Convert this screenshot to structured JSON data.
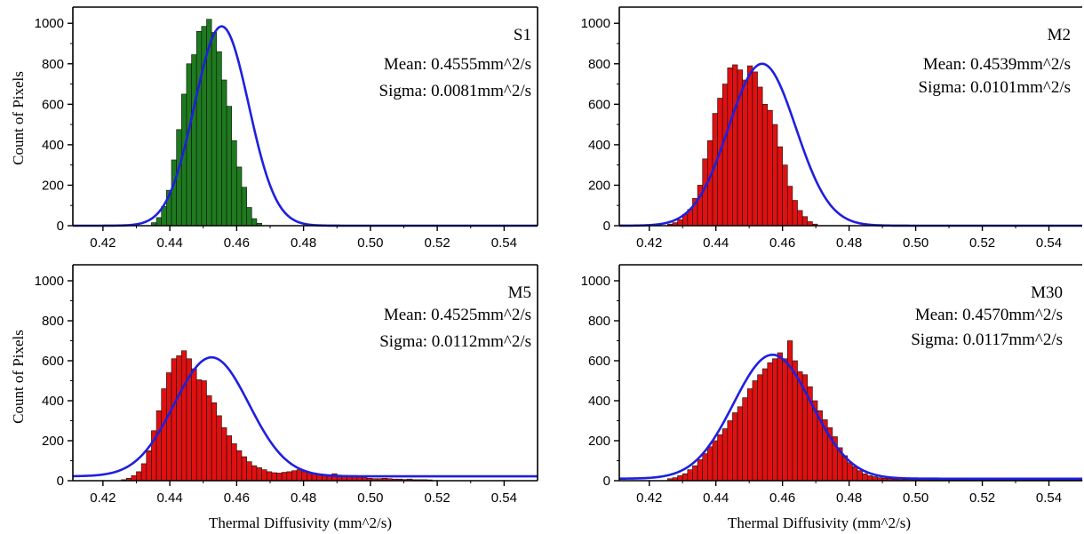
{
  "figure": {
    "x_axis_label": "Thermal Diffusivity (mm^2/s)",
    "y_axis_label": "Count of Pixels"
  },
  "chart_data": [
    {
      "type": "bar",
      "name": "S1",
      "mean_text": "Mean: 0.4555mm^2/s",
      "sigma_text": "Sigma: 0.0081mm^2/s",
      "bar_color": "#1e7a1e",
      "fit_color": "#1f1fe0",
      "xlim": [
        0.411,
        0.55
      ],
      "ylim": [
        0,
        1080
      ],
      "xticks": [
        0.42,
        0.44,
        0.46,
        0.48,
        0.5,
        0.52,
        0.54
      ],
      "yticks": [
        0,
        200,
        400,
        600,
        800,
        1000
      ],
      "xlabel": "",
      "ylabel": "Count of Pixels",
      "fit": {
        "mean": 0.4555,
        "sigma": 0.0081,
        "amplitude": 985,
        "offset": 0
      },
      "bins": {
        "start": 0.4345,
        "width": 0.0015,
        "counts": [
          15,
          40,
          95,
          175,
          325,
          475,
          650,
          800,
          845,
          960,
          985,
          1020,
          955,
          860,
          720,
          590,
          420,
          290,
          190,
          90,
          35,
          12
        ]
      }
    },
    {
      "type": "bar",
      "name": "M2",
      "mean_text": "Mean: 0.4539mm^2/s",
      "sigma_text": "Sigma: 0.0101mm^2/s",
      "bar_color": "#e01010",
      "fit_color": "#1f1fe0",
      "xlim": [
        0.411,
        0.55
      ],
      "ylim": [
        0,
        1080
      ],
      "xticks": [
        0.42,
        0.44,
        0.46,
        0.48,
        0.5,
        0.52,
        0.54
      ],
      "yticks": [
        0,
        200,
        400,
        600,
        800,
        1000
      ],
      "xlabel": "",
      "ylabel": "",
      "fit": {
        "mean": 0.4539,
        "sigma": 0.0101,
        "amplitude": 800,
        "offset": 0
      },
      "bins": {
        "start": 0.4255,
        "width": 0.0015,
        "counts": [
          8,
          15,
          30,
          55,
          80,
          135,
          200,
          330,
          420,
          555,
          630,
          700,
          780,
          795,
          770,
          720,
          790,
          760,
          685,
          600,
          570,
          500,
          390,
          300,
          195,
          125,
          75,
          45,
          20,
          8
        ]
      }
    },
    {
      "type": "bar",
      "name": "M5",
      "mean_text": "Mean: 0.4525mm^2/s",
      "sigma_text": "Sigma: 0.0112mm^2/s",
      "bar_color": "#e01010",
      "fit_color": "#1f1fe0",
      "xlim": [
        0.411,
        0.55
      ],
      "ylim": [
        0,
        1080
      ],
      "xticks": [
        0.42,
        0.44,
        0.46,
        0.48,
        0.5,
        0.52,
        0.54
      ],
      "yticks": [
        0,
        200,
        400,
        600,
        800,
        1000
      ],
      "xlabel": "Thermal Diffusivity (mm^2/s)",
      "ylabel": "Count of Pixels",
      "fit": {
        "mean": 0.4525,
        "sigma": 0.0112,
        "amplitude": 595,
        "offset": 22
      },
      "bins": {
        "start": 0.4255,
        "width": 0.0015,
        "counts": [
          5,
          12,
          25,
          45,
          85,
          150,
          250,
          350,
          460,
          540,
          610,
          625,
          650,
          610,
          560,
          505,
          500,
          425,
          390,
          325,
          265,
          225,
          185,
          150,
          120,
          95,
          75,
          65,
          55,
          45,
          40,
          38,
          42,
          45,
          50,
          55,
          45,
          40,
          35,
          32,
          30,
          30,
          35,
          28,
          25,
          20,
          20,
          18,
          15,
          12,
          10,
          10,
          12,
          10,
          8,
          8,
          6,
          8,
          5,
          5,
          5,
          4
        ]
      }
    },
    {
      "type": "bar",
      "name": "M30",
      "mean_text": "Mean: 0.4570mm^2/s",
      "sigma_text": "Sigma: 0.0117mm^2/s",
      "bar_color": "#e01010",
      "fit_color": "#1f1fe0",
      "xlim": [
        0.411,
        0.55
      ],
      "ylim": [
        0,
        1080
      ],
      "xticks": [
        0.42,
        0.44,
        0.46,
        0.48,
        0.5,
        0.52,
        0.54
      ],
      "yticks": [
        0,
        200,
        400,
        600,
        800,
        1000
      ],
      "xlabel": "Thermal Diffusivity (mm^2/s)",
      "ylabel": "",
      "fit": {
        "mean": 0.457,
        "sigma": 0.0117,
        "amplitude": 620,
        "offset": 10
      },
      "bins": {
        "start": 0.4255,
        "width": 0.0015,
        "counts": [
          10,
          15,
          25,
          35,
          55,
          75,
          105,
          135,
          170,
          200,
          230,
          260,
          300,
          340,
          370,
          415,
          460,
          500,
          530,
          560,
          590,
          610,
          640,
          610,
          700,
          600,
          545,
          530,
          470,
          400,
          350,
          305,
          265,
          220,
          165,
          125,
          90,
          70,
          50,
          35,
          25,
          20,
          15,
          12,
          10,
          8,
          8,
          6,
          6,
          5,
          5,
          5,
          4,
          4,
          4,
          3,
          3,
          3,
          3,
          3,
          3,
          3,
          3,
          3,
          3,
          3,
          3,
          3,
          3,
          3,
          3,
          3,
          3,
          3,
          3,
          3,
          3,
          3,
          3,
          3,
          3,
          3,
          3,
          3
        ]
      }
    }
  ]
}
